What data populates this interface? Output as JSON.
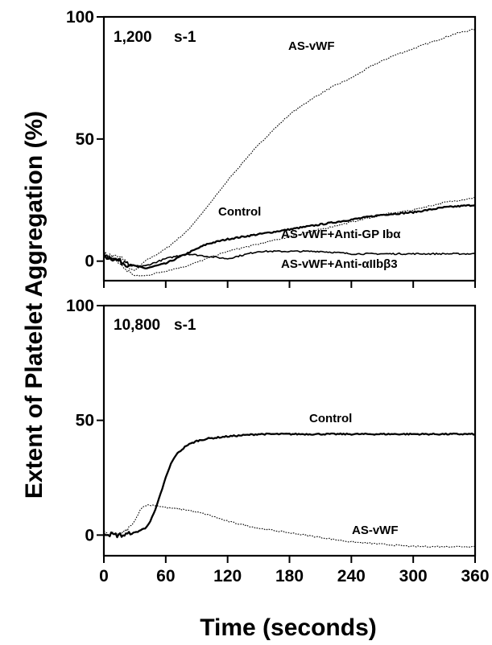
{
  "figure": {
    "ylabel": "Extent of Platelet Aggregation (%)",
    "xlabel": "Time (seconds)"
  },
  "chart_data": [
    {
      "type": "line",
      "panel_label": "1,200",
      "panel_unit": "s-1",
      "xlim": [
        0,
        360
      ],
      "ylim": [
        -8,
        100
      ],
      "yticks": [
        0,
        50,
        100
      ],
      "xticks": [
        0,
        60,
        120,
        180,
        240,
        300,
        360
      ],
      "show_x_tick_labels": false,
      "series": [
        {
          "name": "AS-vWF",
          "style": "dotted",
          "x": [
            0,
            10,
            20,
            25,
            30,
            40,
            60,
            80,
            100,
            120,
            140,
            160,
            180,
            200,
            220,
            240,
            260,
            280,
            300,
            320,
            340,
            360
          ],
          "y": [
            3,
            2,
            1,
            -3,
            -4,
            0,
            5,
            12,
            22,
            33,
            43,
            52,
            60,
            66,
            71,
            75,
            80,
            84,
            87,
            90,
            93,
            95
          ]
        },
        {
          "name": "Control",
          "style": "solid",
          "x": [
            0,
            10,
            20,
            30,
            40,
            60,
            80,
            100,
            120,
            150,
            180,
            210,
            240,
            270,
            300,
            330,
            360
          ],
          "y": [
            2,
            1,
            -1,
            -2,
            -3,
            -1,
            3,
            7,
            9,
            11,
            13,
            15,
            17,
            19,
            20,
            22,
            23
          ]
        },
        {
          "name": "AS-vWF+Anti-GP  Ibα",
          "style": "dotted",
          "x": [
            0,
            10,
            20,
            30,
            40,
            60,
            80,
            100,
            120,
            150,
            180,
            210,
            240,
            270,
            300,
            330,
            360
          ],
          "y": [
            2,
            1,
            -3,
            -6,
            -6,
            -4,
            -2,
            1,
            4,
            7,
            10,
            13,
            16,
            19,
            21,
            24,
            26
          ]
        },
        {
          "name": "AS-vWF+Anti-αIIbβ3",
          "style": "solid-thin",
          "x": [
            0,
            10,
            20,
            30,
            40,
            60,
            80,
            100,
            120,
            150,
            180,
            210,
            240,
            270,
            300,
            330,
            360
          ],
          "y": [
            2,
            1,
            -1,
            -2,
            -2,
            1,
            3,
            2,
            1,
            4,
            4,
            4,
            3,
            3,
            3,
            3,
            3
          ]
        }
      ]
    },
    {
      "type": "line",
      "panel_label": "10,800",
      "panel_unit": "s-1",
      "xlim": [
        0,
        360
      ],
      "ylim": [
        -9,
        100
      ],
      "yticks": [
        0,
        50,
        100
      ],
      "xticks": [
        0,
        60,
        120,
        180,
        240,
        300,
        360
      ],
      "show_x_tick_labels": true,
      "series": [
        {
          "name": "Control",
          "style": "solid",
          "x": [
            0,
            10,
            20,
            30,
            40,
            45,
            50,
            55,
            60,
            65,
            70,
            80,
            90,
            100,
            120,
            150,
            180,
            240,
            300,
            360
          ],
          "y": [
            1,
            0,
            0,
            1,
            3,
            6,
            11,
            18,
            25,
            31,
            35,
            39,
            41,
            42,
            43,
            44,
            44,
            44,
            44,
            44
          ]
        },
        {
          "name": "AS-vWF",
          "style": "dotted",
          "x": [
            0,
            10,
            20,
            30,
            35,
            40,
            50,
            60,
            80,
            100,
            120,
            150,
            180,
            210,
            240,
            270,
            300,
            330,
            360
          ],
          "y": [
            1,
            0,
            1,
            6,
            11,
            13,
            13,
            12,
            11,
            9,
            6,
            3,
            1,
            -1,
            -3,
            -4,
            -5,
            -5,
            -5
          ]
        }
      ]
    }
  ]
}
